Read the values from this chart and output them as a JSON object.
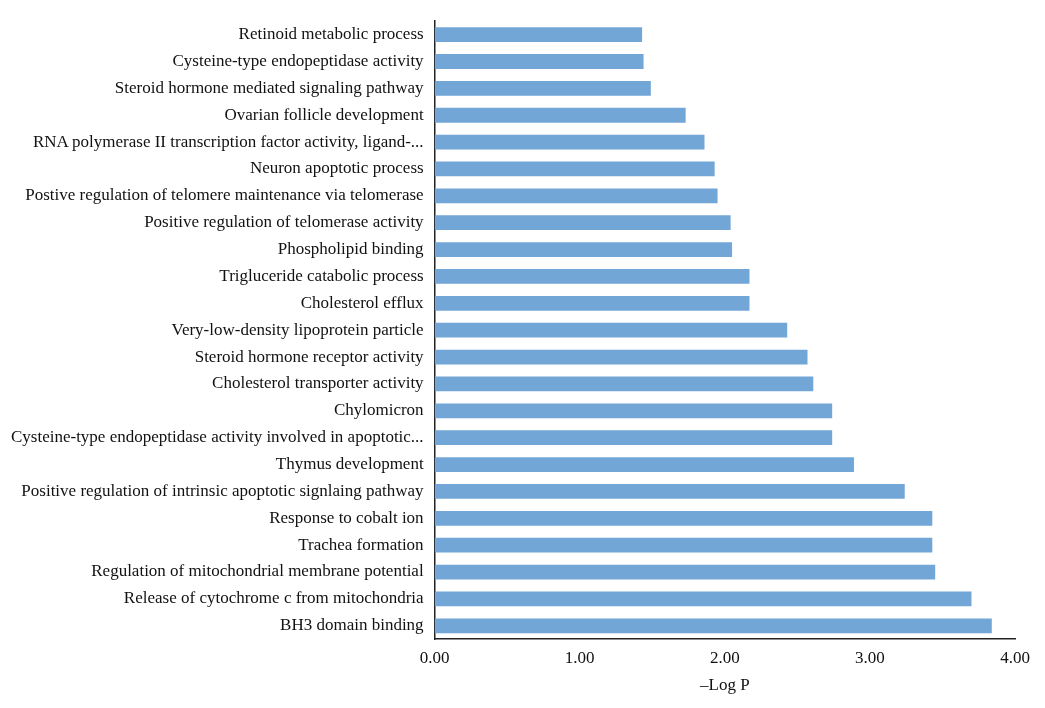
{
  "chart_data": {
    "type": "bar",
    "orientation": "horizontal",
    "xlabel": "–Log P",
    "categories": [
      "Retinoid metabolic process",
      "Cysteine-type endopeptidase activity",
      "Steroid hormone mediated signaling pathway",
      "Ovarian follicle development",
      "RNA polymerase II transcription factor activity, ligand-...",
      "Neuron apoptotic process",
      "Postive regulation of telomere maintenance via telomerase",
      "Positive regulation of telomerase activity",
      "Phospholipid binding",
      "Trigluceride catabolic process",
      "Cholesterol efflux",
      "Very-low-density lipoprotein particle",
      "Steroid hormone receptor activity",
      "Cholesterol transporter activity",
      "Chylomicron",
      "Cysteine-type endopeptidase activity involved in apoptotic...",
      "Thymus development",
      "Positive regulation of intrinsic apoptotic signlaing pathway",
      "Response to cobalt ion",
      "Trachea formation",
      "Regulation of mitochondrial membrane potential",
      "Release of cytochrome c from mitochondria",
      "BH3 domain binding"
    ],
    "values": [
      1.43,
      1.44,
      1.49,
      1.73,
      1.86,
      1.93,
      1.95,
      2.04,
      2.05,
      2.17,
      2.17,
      2.43,
      2.57,
      2.61,
      2.74,
      2.74,
      2.89,
      3.24,
      3.43,
      3.43,
      3.45,
      3.7,
      3.84
    ],
    "color": "#71a6d6",
    "xlim": [
      0,
      4
    ],
    "xticks": [
      {
        "value": 0,
        "label": "0.00"
      },
      {
        "value": 1,
        "label": "1.00"
      },
      {
        "value": 2,
        "label": "2.00"
      },
      {
        "value": 3,
        "label": "3.00"
      },
      {
        "value": 4,
        "label": "4.00"
      }
    ],
    "grid": false,
    "legend": false
  }
}
